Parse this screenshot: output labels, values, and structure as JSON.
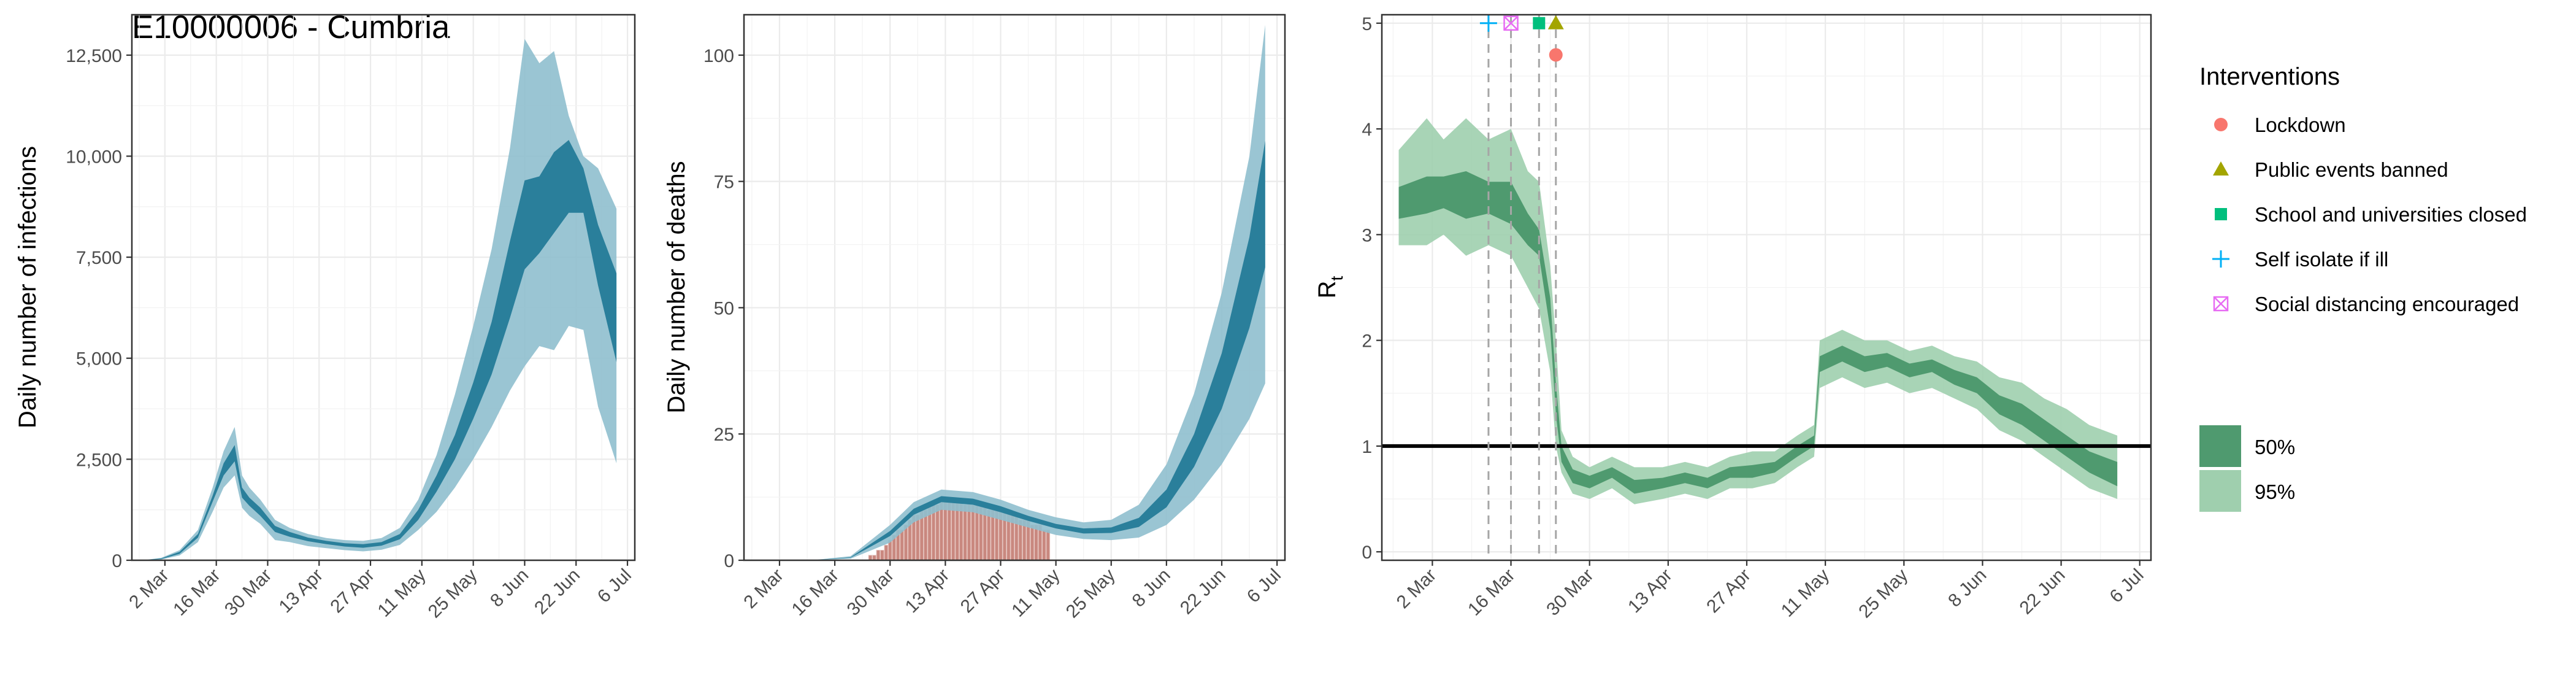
{
  "figure_title": "E10000006 - Cumbria",
  "date_ticks": [
    "2 Mar",
    "16 Mar",
    "30 Mar",
    "13 Apr",
    "27 Apr",
    "11 May",
    "25 May",
    "8 Jun",
    "22 Jun",
    "6 Jul"
  ],
  "colors": {
    "infections_50": "#2a7f9b",
    "infections_95": "#8fbfce",
    "deaths_observed": "#c9887f",
    "rt_50": "#4f9a6f",
    "rt_95": "#9fcfae",
    "lockdown": "#f8766d",
    "public_events": "#a3a500",
    "schools": "#00bf7d",
    "self_isolate": "#00b0f6",
    "social_distancing": "#e76bf3",
    "reference_line": "#000000",
    "panel_border": "#333333",
    "grid": "#ebebeb"
  },
  "legend": {
    "interventions_title": "Interventions",
    "interventions": [
      {
        "key": "lockdown",
        "label": "Lockdown",
        "shape": "circle",
        "color": "#f8766d"
      },
      {
        "key": "public_events",
        "label": "Public events banned",
        "shape": "triangle",
        "color": "#a3a500"
      },
      {
        "key": "schools",
        "label": "School and universities closed",
        "shape": "square",
        "color": "#00bf7d"
      },
      {
        "key": "self_isolate",
        "label": "Self isolate if ill",
        "shape": "plus",
        "color": "#00b0f6"
      },
      {
        "key": "social_distancing",
        "label": "Social distancing encouraged",
        "shape": "boxcross",
        "color": "#e76bf3"
      }
    ],
    "intervals": [
      {
        "label": "50%",
        "color": "#4f9a6f"
      },
      {
        "label": "95%",
        "color": "#9fcfae"
      }
    ]
  },
  "chart_data": [
    {
      "type": "area",
      "ylabel": "Daily number of infections",
      "xlabel": "",
      "x_axis": "date",
      "xlim": [
        "2020-02-22",
        "2020-07-08"
      ],
      "ylim": [
        0,
        13500
      ],
      "yticks": [
        0,
        2500,
        5000,
        7500,
        10000,
        12500
      ],
      "ytick_labels": [
        "0",
        "2,500",
        "5,000",
        "7,500",
        "10,000",
        "12,500"
      ],
      "grid": true,
      "series": [
        {
          "interval": "95%",
          "x": [
            "2020-02-25",
            "2020-03-01",
            "2020-03-06",
            "2020-03-11",
            "2020-03-15",
            "2020-03-18",
            "2020-03-21",
            "2020-03-23",
            "2020-03-25",
            "2020-03-28",
            "2020-04-01",
            "2020-04-05",
            "2020-04-10",
            "2020-04-15",
            "2020-04-20",
            "2020-04-25",
            "2020-04-30",
            "2020-05-05",
            "2020-05-10",
            "2020-05-15",
            "2020-05-20",
            "2020-05-25",
            "2020-05-30",
            "2020-06-04",
            "2020-06-08",
            "2020-06-12",
            "2020-06-16",
            "2020-06-20",
            "2020-06-24",
            "2020-06-28",
            "2020-07-03"
          ],
          "lower": [
            0,
            20,
            120,
            450,
            1200,
            1800,
            2100,
            1300,
            1100,
            900,
            500,
            450,
            350,
            300,
            250,
            220,
            260,
            380,
            750,
            1200,
            1800,
            2500,
            3300,
            4200,
            4800,
            5300,
            5200,
            5800,
            5700,
            3800,
            2400
          ],
          "upper": [
            0,
            60,
            250,
            750,
            1800,
            2700,
            3300,
            2100,
            1800,
            1500,
            1000,
            800,
            650,
            550,
            500,
            480,
            550,
            800,
            1500,
            2600,
            4100,
            5800,
            7700,
            10200,
            12900,
            12300,
            12600,
            11000,
            10000,
            9700,
            8700
          ]
        },
        {
          "interval": "50%",
          "x": [
            "2020-02-25",
            "2020-03-01",
            "2020-03-06",
            "2020-03-11",
            "2020-03-15",
            "2020-03-18",
            "2020-03-21",
            "2020-03-23",
            "2020-03-25",
            "2020-03-28",
            "2020-04-01",
            "2020-04-05",
            "2020-04-10",
            "2020-04-15",
            "2020-04-20",
            "2020-04-25",
            "2020-04-30",
            "2020-05-05",
            "2020-05-10",
            "2020-05-15",
            "2020-05-20",
            "2020-05-25",
            "2020-05-30",
            "2020-06-04",
            "2020-06-08",
            "2020-06-12",
            "2020-06-16",
            "2020-06-20",
            "2020-06-24",
            "2020-06-28",
            "2020-07-03"
          ],
          "lower": [
            0,
            30,
            160,
            560,
            1450,
            2100,
            2450,
            1550,
            1350,
            1100,
            700,
            580,
            470,
            400,
            340,
            310,
            360,
            520,
            1000,
            1700,
            2500,
            3500,
            4600,
            6000,
            7200,
            7600,
            8100,
            8600,
            8600,
            6800,
            4900
          ],
          "upper": [
            0,
            45,
            210,
            650,
            1600,
            2400,
            2850,
            1800,
            1550,
            1300,
            850,
            700,
            560,
            480,
            420,
            400,
            450,
            650,
            1250,
            2100,
            3100,
            4400,
            5900,
            7900,
            9400,
            9500,
            10100,
            10400,
            9700,
            8300,
            7100
          ]
        }
      ]
    },
    {
      "type": "bar",
      "ylabel": "Daily number of deaths",
      "xlabel": "",
      "x_axis": "date",
      "xlim": [
        "2020-02-22",
        "2020-07-08"
      ],
      "ylim": [
        0,
        108
      ],
      "yticks": [
        0,
        25,
        50,
        75,
        100
      ],
      "ytick_labels": [
        "0",
        "25",
        "50",
        "75",
        "100"
      ],
      "grid": true,
      "observed_deaths": {
        "x": [
          "2020-03-25",
          "2020-03-26",
          "2020-03-27",
          "2020-03-28",
          "2020-03-29",
          "2020-03-30",
          "2020-03-31",
          "2020-04-01",
          "2020-04-02",
          "2020-04-03",
          "2020-04-04",
          "2020-04-05",
          "2020-04-06",
          "2020-04-07",
          "2020-04-08",
          "2020-04-09",
          "2020-04-10",
          "2020-04-11",
          "2020-04-12",
          "2020-04-13",
          "2020-04-14",
          "2020-04-15",
          "2020-04-16",
          "2020-04-17",
          "2020-04-18",
          "2020-04-19",
          "2020-04-20",
          "2020-04-21",
          "2020-04-22",
          "2020-04-23",
          "2020-04-24",
          "2020-04-25",
          "2020-04-26",
          "2020-04-27",
          "2020-04-28",
          "2020-04-29",
          "2020-04-30",
          "2020-05-01",
          "2020-05-02",
          "2020-05-03",
          "2020-05-04",
          "2020-05-05",
          "2020-05-06",
          "2020-05-07",
          "2020-05-08",
          "2020-05-09"
        ],
        "values": [
          1,
          1,
          2,
          2,
          3,
          4,
          5,
          6,
          6,
          7,
          8,
          9,
          9,
          10,
          10,
          11,
          11,
          11,
          12,
          12,
          12,
          12,
          12,
          12,
          11,
          12,
          11,
          12,
          11,
          11,
          10,
          10,
          10,
          10,
          10,
          10,
          9,
          9,
          8,
          8,
          8,
          7,
          7,
          7,
          6,
          6
        ]
      },
      "series": [
        {
          "interval": "95%",
          "x": [
            "2020-03-01",
            "2020-03-10",
            "2020-03-20",
            "2020-03-30",
            "2020-04-05",
            "2020-04-12",
            "2020-04-20",
            "2020-04-27",
            "2020-05-04",
            "2020-05-11",
            "2020-05-18",
            "2020-05-25",
            "2020-06-01",
            "2020-06-08",
            "2020-06-15",
            "2020-06-22",
            "2020-06-29",
            "2020-07-03"
          ],
          "lower": [
            0,
            0,
            0.3,
            3.5,
            7.5,
            10,
            9.5,
            8,
            6.5,
            5,
            4.2,
            4,
            4.5,
            7,
            12,
            19,
            28,
            35
          ],
          "upper": [
            0,
            0,
            0.8,
            7,
            11.5,
            14,
            13.5,
            12,
            10,
            8.5,
            7.5,
            8,
            11,
            19,
            33,
            53,
            80,
            106
          ]
        },
        {
          "interval": "50%",
          "x": [
            "2020-03-01",
            "2020-03-10",
            "2020-03-20",
            "2020-03-30",
            "2020-04-05",
            "2020-04-12",
            "2020-04-20",
            "2020-04-27",
            "2020-05-04",
            "2020-05-11",
            "2020-05-18",
            "2020-05-25",
            "2020-06-01",
            "2020-06-08",
            "2020-06-15",
            "2020-06-22",
            "2020-06-29",
            "2020-07-03"
          ],
          "lower": [
            0,
            0,
            0.5,
            4.8,
            9,
            11.5,
            11,
            9.5,
            7.8,
            6.3,
            5.3,
            5.4,
            6.6,
            10.5,
            18.5,
            30,
            46,
            58
          ],
          "upper": [
            0,
            0,
            0.6,
            5.8,
            10.2,
            12.7,
            12.2,
            10.7,
            8.8,
            7.2,
            6.3,
            6.5,
            8.4,
            14,
            25,
            41,
            64,
            83
          ]
        }
      ]
    },
    {
      "type": "area",
      "ylabel": "Rt",
      "xlabel": "",
      "x_axis": "date",
      "xlim": [
        "2020-02-22",
        "2020-07-08"
      ],
      "ylim": [
        -0.08,
        5.08
      ],
      "yticks": [
        0,
        1,
        2,
        3,
        4,
        5
      ],
      "ytick_labels": [
        "0",
        "1",
        "2",
        "3",
        "4",
        "5"
      ],
      "grid": true,
      "reference_line": 1,
      "intervention_dates": [
        {
          "key": "self_isolate",
          "date": "2020-03-12",
          "y": 5.0
        },
        {
          "key": "social_distancing",
          "date": "2020-03-16",
          "y": 5.0
        },
        {
          "key": "schools",
          "date": "2020-03-21",
          "y": 5.0
        },
        {
          "key": "public_events",
          "date": "2020-03-24",
          "y": 5.0
        },
        {
          "key": "lockdown",
          "date": "2020-03-24",
          "y": 4.7
        }
      ],
      "series": [
        {
          "interval": "95%",
          "x": [
            "2020-02-25",
            "2020-03-01",
            "2020-03-04",
            "2020-03-08",
            "2020-03-12",
            "2020-03-16",
            "2020-03-19",
            "2020-03-21",
            "2020-03-23",
            "2020-03-24",
            "2020-03-25",
            "2020-03-27",
            "2020-03-30",
            "2020-04-03",
            "2020-04-07",
            "2020-04-12",
            "2020-04-16",
            "2020-04-20",
            "2020-04-24",
            "2020-04-28",
            "2020-05-02",
            "2020-05-06",
            "2020-05-09",
            "2020-05-10",
            "2020-05-14",
            "2020-05-18",
            "2020-05-22",
            "2020-05-26",
            "2020-05-30",
            "2020-06-03",
            "2020-06-07",
            "2020-06-11",
            "2020-06-15",
            "2020-06-19",
            "2020-06-23",
            "2020-06-27",
            "2020-07-02"
          ],
          "lower": [
            2.9,
            2.9,
            3.0,
            2.8,
            2.9,
            2.8,
            2.5,
            2.3,
            1.7,
            1.0,
            0.75,
            0.55,
            0.5,
            0.6,
            0.45,
            0.5,
            0.55,
            0.5,
            0.6,
            0.6,
            0.65,
            0.8,
            0.9,
            1.55,
            1.65,
            1.55,
            1.6,
            1.5,
            1.55,
            1.45,
            1.35,
            1.15,
            1.05,
            0.9,
            0.75,
            0.6,
            0.5
          ],
          "upper": [
            3.8,
            4.1,
            3.9,
            4.1,
            3.9,
            4.0,
            3.6,
            3.5,
            2.7,
            2.0,
            1.15,
            0.9,
            0.8,
            0.9,
            0.8,
            0.8,
            0.85,
            0.8,
            0.9,
            0.95,
            0.95,
            1.1,
            1.2,
            2.0,
            2.1,
            2.0,
            2.0,
            1.9,
            1.95,
            1.85,
            1.8,
            1.65,
            1.6,
            1.45,
            1.35,
            1.2,
            1.1
          ]
        },
        {
          "interval": "50%",
          "x": [
            "2020-02-25",
            "2020-03-01",
            "2020-03-04",
            "2020-03-08",
            "2020-03-12",
            "2020-03-16",
            "2020-03-19",
            "2020-03-21",
            "2020-03-23",
            "2020-03-24",
            "2020-03-25",
            "2020-03-27",
            "2020-03-30",
            "2020-04-03",
            "2020-04-07",
            "2020-04-12",
            "2020-04-16",
            "2020-04-20",
            "2020-04-24",
            "2020-04-28",
            "2020-05-02",
            "2020-05-06",
            "2020-05-09",
            "2020-05-10",
            "2020-05-14",
            "2020-05-18",
            "2020-05-22",
            "2020-05-26",
            "2020-05-30",
            "2020-06-03",
            "2020-06-07",
            "2020-06-11",
            "2020-06-15",
            "2020-06-19",
            "2020-06-23",
            "2020-06-27",
            "2020-07-02"
          ],
          "lower": [
            3.15,
            3.2,
            3.25,
            3.15,
            3.2,
            3.1,
            2.9,
            2.8,
            2.1,
            1.3,
            0.85,
            0.65,
            0.6,
            0.7,
            0.55,
            0.6,
            0.65,
            0.6,
            0.7,
            0.7,
            0.75,
            0.9,
            1.0,
            1.7,
            1.8,
            1.7,
            1.75,
            1.65,
            1.7,
            1.58,
            1.5,
            1.3,
            1.2,
            1.05,
            0.9,
            0.75,
            0.62
          ],
          "upper": [
            3.45,
            3.55,
            3.55,
            3.6,
            3.5,
            3.5,
            3.2,
            3.05,
            2.4,
            1.6,
            1.0,
            0.78,
            0.72,
            0.8,
            0.68,
            0.7,
            0.75,
            0.7,
            0.8,
            0.82,
            0.85,
            1.0,
            1.1,
            1.85,
            1.95,
            1.85,
            1.88,
            1.78,
            1.82,
            1.72,
            1.65,
            1.48,
            1.4,
            1.25,
            1.1,
            0.95,
            0.85
          ]
        }
      ]
    }
  ]
}
